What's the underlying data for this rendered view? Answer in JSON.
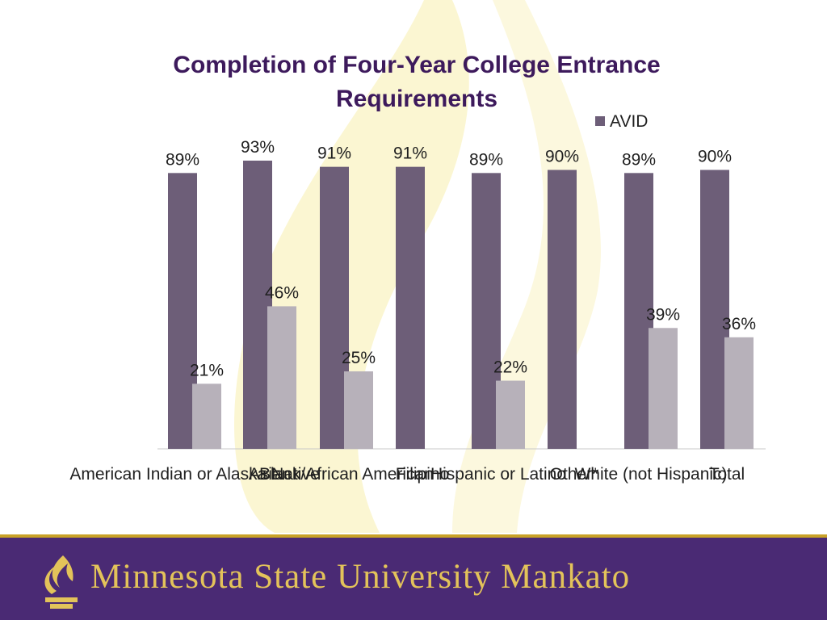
{
  "chart_data": {
    "type": "bar",
    "title": "Completion of Four-Year College Entrance Requirements",
    "title_lines": [
      "Completion of Four-Year College Entrance",
      "Requirements"
    ],
    "categories": [
      "American Indian or Alaska Native",
      "Asian",
      "Black/African American",
      "Filipino",
      "Hispanic or Latino",
      "Other*",
      "White (not Hispanic)",
      "Total"
    ],
    "series": [
      {
        "name": "AVID",
        "color": "#6d5e78",
        "values": [
          89,
          93,
          91,
          91,
          89,
          90,
          89,
          90
        ],
        "labels": [
          "89%",
          "93%",
          "91%",
          "91%",
          "89%",
          "90%",
          "89%",
          "90%"
        ]
      },
      {
        "name": "",
        "color": "#b7b1ba",
        "values": [
          21,
          46,
          25,
          null,
          22,
          null,
          39,
          36
        ],
        "labels": [
          "21%",
          "46%",
          "25%",
          null,
          "22%",
          null,
          "39%",
          "36%"
        ]
      }
    ],
    "ylim": [
      0,
      100
    ],
    "legend": "top-right",
    "grid": false
  },
  "footer": {
    "wordmark": "Minnesota State University Mankato",
    "logo_icon": "flame-torch-icon",
    "background": "#4a2a74",
    "text_color": "#e3c35a"
  }
}
